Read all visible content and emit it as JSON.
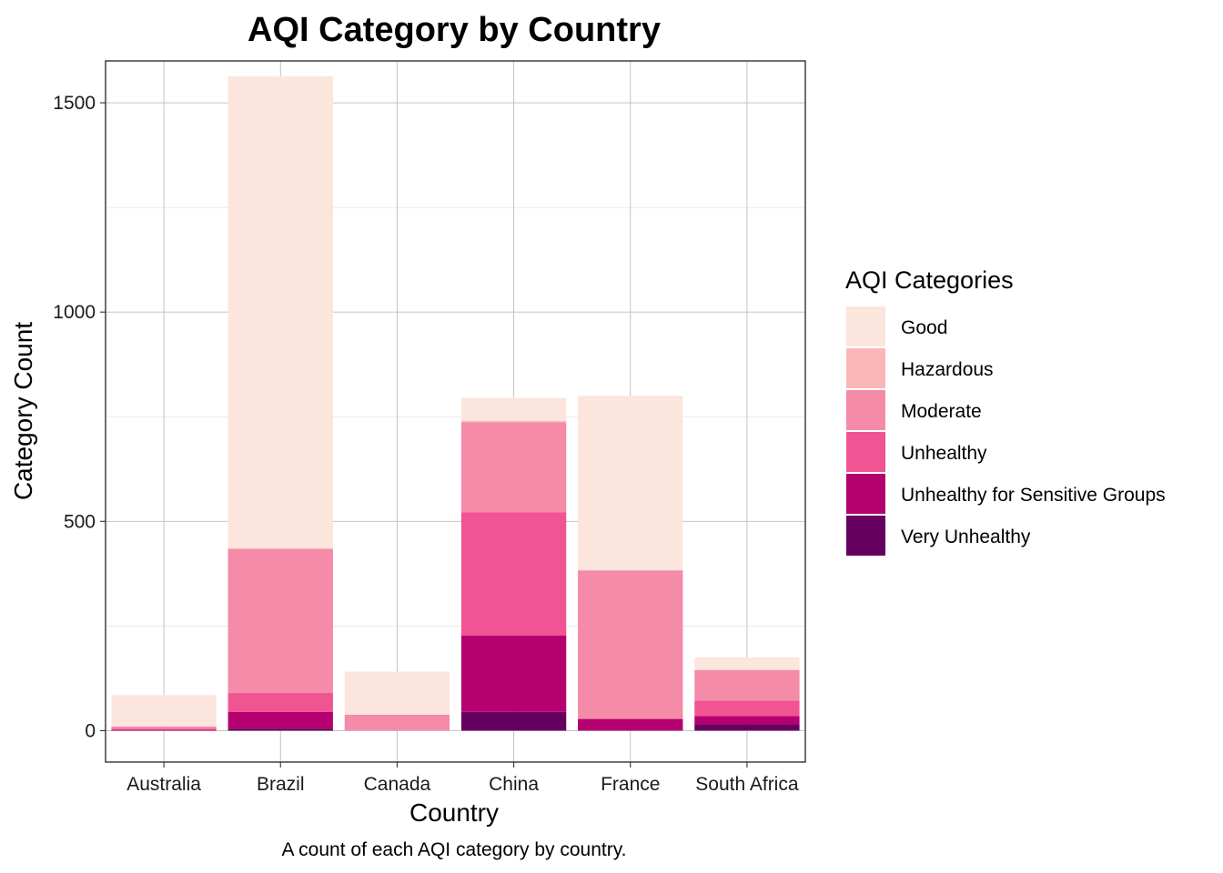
{
  "chart_data": {
    "type": "bar",
    "stacked": true,
    "title": "AQI Category by Country",
    "xlabel": "Country",
    "ylabel": "Category Count",
    "caption": "A count of each AQI category by country.",
    "categories": [
      "Australia",
      "Brazil",
      "Canada",
      "China",
      "France",
      "South Africa"
    ],
    "ylim": [
      -75,
      1600
    ],
    "yticks": [
      0,
      500,
      1000,
      1500
    ],
    "yticks_minor": [
      250,
      750,
      1250
    ],
    "grid": true,
    "legend": {
      "title": "AQI Categories",
      "position": "right"
    },
    "series": [
      {
        "name": "Very Unhealthy",
        "color": "#66005f",
        "values": [
          0,
          5,
          0,
          45,
          0,
          15
        ]
      },
      {
        "name": "Unhealthy for Sensitive Groups",
        "color": "#b5006f",
        "values": [
          2,
          40,
          0,
          182,
          28,
          20
        ]
      },
      {
        "name": "Unhealthy",
        "color": "#f05493",
        "values": [
          3,
          45,
          0,
          295,
          0,
          37
        ]
      },
      {
        "name": "Moderate",
        "color": "#f48ba8",
        "values": [
          5,
          345,
          38,
          215,
          355,
          73
        ]
      },
      {
        "name": "Hazardous",
        "color": "#fab7b6",
        "values": [
          0,
          0,
          0,
          3,
          0,
          0
        ]
      },
      {
        "name": "Good",
        "color": "#fce5dc",
        "values": [
          75,
          1128,
          103,
          55,
          417,
          30
        ]
      }
    ],
    "legend_order": [
      "Good",
      "Hazardous",
      "Moderate",
      "Unhealthy",
      "Unhealthy for Sensitive Groups",
      "Very Unhealthy"
    ]
  }
}
